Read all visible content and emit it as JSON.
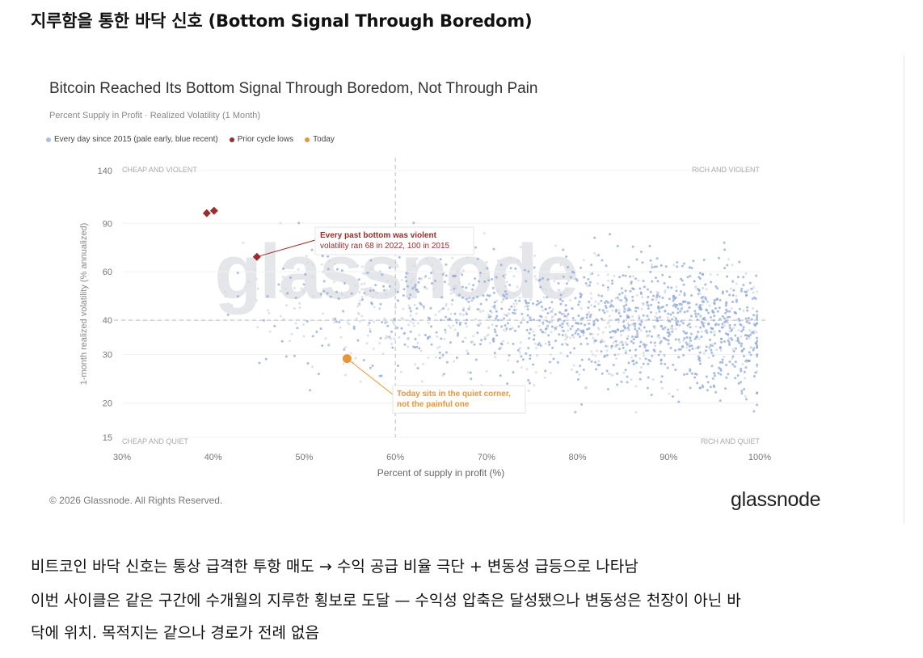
{
  "header": {
    "title": "지루함을 통한 바닥 신호 (Bottom Signal Through Boredom)"
  },
  "chart_data": {
    "type": "scatter",
    "title": "Bitcoin Reached Its Bottom Signal Through Boredom, Not Through Pain",
    "subtitle": "Percent Supply in Profit · Realized Volatility (1 Month)",
    "xlabel": "Percent of supply in profit (%)",
    "ylabel": "1-month realized volatility (% annualized)",
    "x_scale": "linear",
    "y_scale": "log",
    "xlim": [
      30,
      100
    ],
    "ylim": [
      15,
      140
    ],
    "x_ticks": [
      30,
      40,
      50,
      60,
      70,
      80,
      90,
      100
    ],
    "x_tick_labels": [
      "30%",
      "40%",
      "50%",
      "60%",
      "70%",
      "80%",
      "90%",
      "100%"
    ],
    "y_ticks": [
      15,
      20,
      30,
      40,
      60,
      90,
      140
    ],
    "y_tick_labels": [
      "15",
      "20",
      "30",
      "40",
      "60",
      "90",
      "140"
    ],
    "reference_lines": {
      "x": 60,
      "y": 40
    },
    "quadrant_labels": [
      "CHEAP AND VIOLENT",
      "RICH AND VIOLENT",
      "CHEAP AND QUIET",
      "RICH AND QUIET"
    ],
    "legend": [
      {
        "label": "Every day since 2015 (pale early, blue recent)",
        "color": "#a9bfe3"
      },
      {
        "label": "Prior cycle lows",
        "color": "#9b2c2c"
      },
      {
        "label": "Today",
        "color": "#e8963a"
      }
    ],
    "series": [
      {
        "name": "Prior cycle lows",
        "color": "#9b2c2c",
        "marker": "diamond",
        "points": [
          {
            "x": 39.3,
            "y": 98
          },
          {
            "x": 40.1,
            "y": 100
          },
          {
            "x": 44.8,
            "y": 68
          }
        ]
      },
      {
        "name": "Today",
        "color": "#e8963a",
        "marker": "circle",
        "points": [
          {
            "x": 54.7,
            "y": 29
          }
        ]
      }
    ],
    "annotations": [
      {
        "title": "Every past bottom was violent",
        "text": "volatility ran 68 in 2022, 100 in 2015",
        "color": "#9b2c2c"
      },
      {
        "title": "Today sits in the quiet corner,",
        "text": "not the painful one",
        "color": "#e8963a"
      }
    ],
    "watermark": "glassnode",
    "background_cloud": {
      "description": "daily points since 2015",
      "color_early": "#d6dbe2",
      "color_recent": "#8fa8d6"
    }
  },
  "footer": {
    "copyright": "© 2026 Glassnode. All Rights Reserved.",
    "brand": "glassnode"
  },
  "body": {
    "line1": "비트코인 바닥 신호는 통상 급격한 투항 매도 → 수익 공급 비율 극단 + 변동성 급등으로 나타남",
    "line2": "이번 사이클은 같은 구간에 수개월의 지루한 횡보로 도달 — 수익성 압축은 달성됐으나 변동성은 천장이 아닌 바",
    "line3": "닥에 위치. 목적지는 같으나 경로가 전례 없음"
  }
}
